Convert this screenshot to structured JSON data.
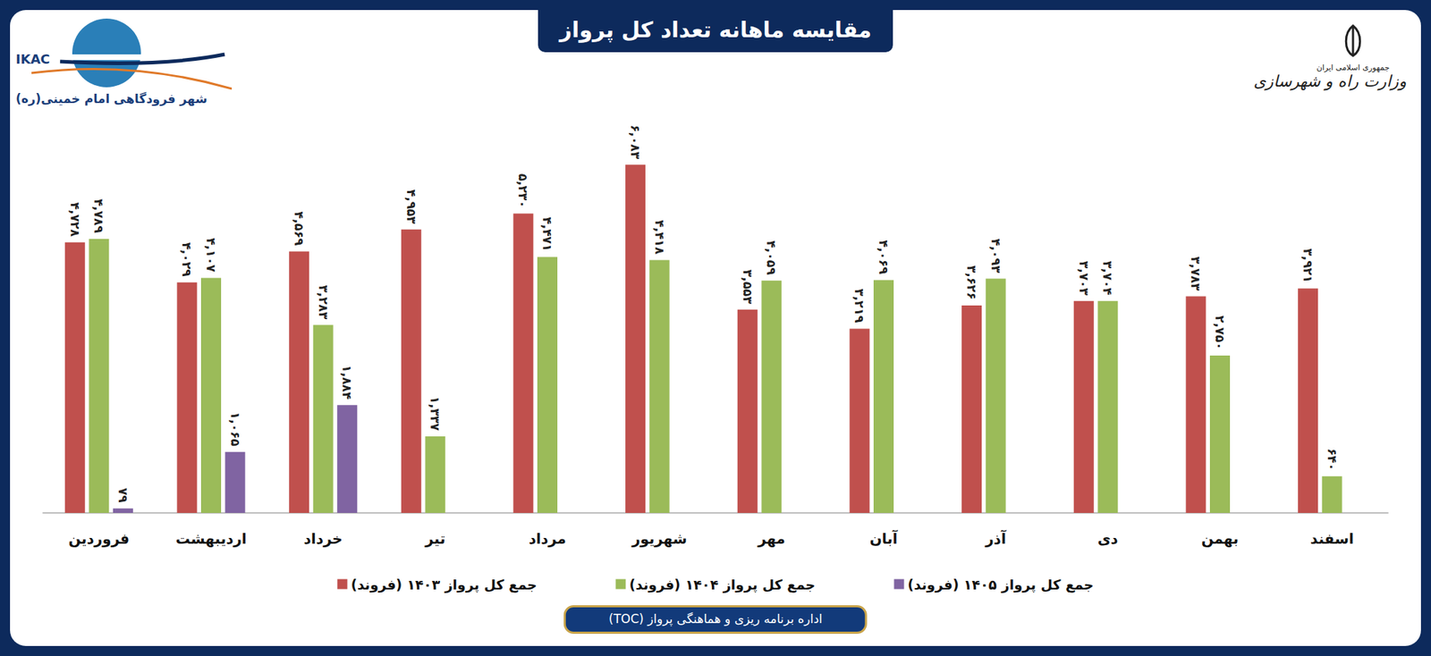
{
  "chart_data": {
    "type": "bar",
    "title": "مقایسه ماهانه تعداد کل پرواز",
    "categories": [
      "فروردین",
      "اردیبهشت",
      "خرداد",
      "تیر",
      "مرداد",
      "شهریور",
      "مهر",
      "آبان",
      "آذر",
      "دی",
      "بهمن",
      "اسفند"
    ],
    "series": [
      {
        "name": "جمع کل پرواز ۱۴۰۳ (فروند)",
        "color": "#c0504d",
        "values": [
          4728,
          4029,
          4569,
          4953,
          5230,
          6083,
          3553,
          3219,
          3626,
          3703,
          3783,
          3921
        ],
        "value_labels": [
          "۴,۷۲۸",
          "۴,۰۲۹",
          "۴,۵۶۹",
          "۴,۹۵۳",
          "۵,۲۳۰",
          "۶,۰۸۳",
          "۳,۵۵۳",
          "۳,۲۱۹",
          "۳,۶۲۶",
          "۳,۷۰۳",
          "۳,۷۸۳",
          "۳,۹۲۱"
        ]
      },
      {
        "name": "جمع کل پرواز ۱۴۰۴ (فروند)",
        "color": "#9bbb59",
        "values": [
          4789,
          4107,
          3283,
          1337,
          4471,
          4418,
          4059,
          4069,
          4093,
          3704,
          2750,
          640
        ],
        "value_labels": [
          "۴,۷۸۹",
          "۴,۱۰۷",
          "۳,۲۸۳",
          "۱,۳۳۷",
          "۴,۴۷۱",
          "۴,۴۱۸",
          "۴,۰۵۹",
          "۴,۰۶۹",
          "۴,۰۹۳",
          "۳,۷۰۴",
          "۲,۷۵۰",
          "۶۴۰"
        ]
      },
      {
        "name": "جمع کل پرواز ۱۴۰۵ (فروند)",
        "color": "#8064a2",
        "values": [
          79,
          1065,
          1884,
          null,
          null,
          null,
          null,
          null,
          null,
          null,
          null,
          null
        ],
        "value_labels": [
          "۷۹",
          "۱,۰۶۵",
          "۱,۸۸۴",
          null,
          null,
          null,
          null,
          null,
          null,
          null,
          null,
          null
        ]
      }
    ],
    "ylim": [
      0,
      7000
    ],
    "yticks": [
      0,
      7000
    ],
    "grid": false,
    "tick_labels": "x",
    "data_labels": true,
    "legend": "bottom"
  },
  "page": {
    "logo_left": "IKAC",
    "logo_left_caption": "شهر فرودگاهی امام خمینی(ره)",
    "logo_right_small": "جمهوری اسلامی ایران",
    "logo_right_title": "وزارت راه و شهرسازی",
    "footer": "اداره برنامه ریزی و هماهنگی پرواز (TOC)"
  }
}
